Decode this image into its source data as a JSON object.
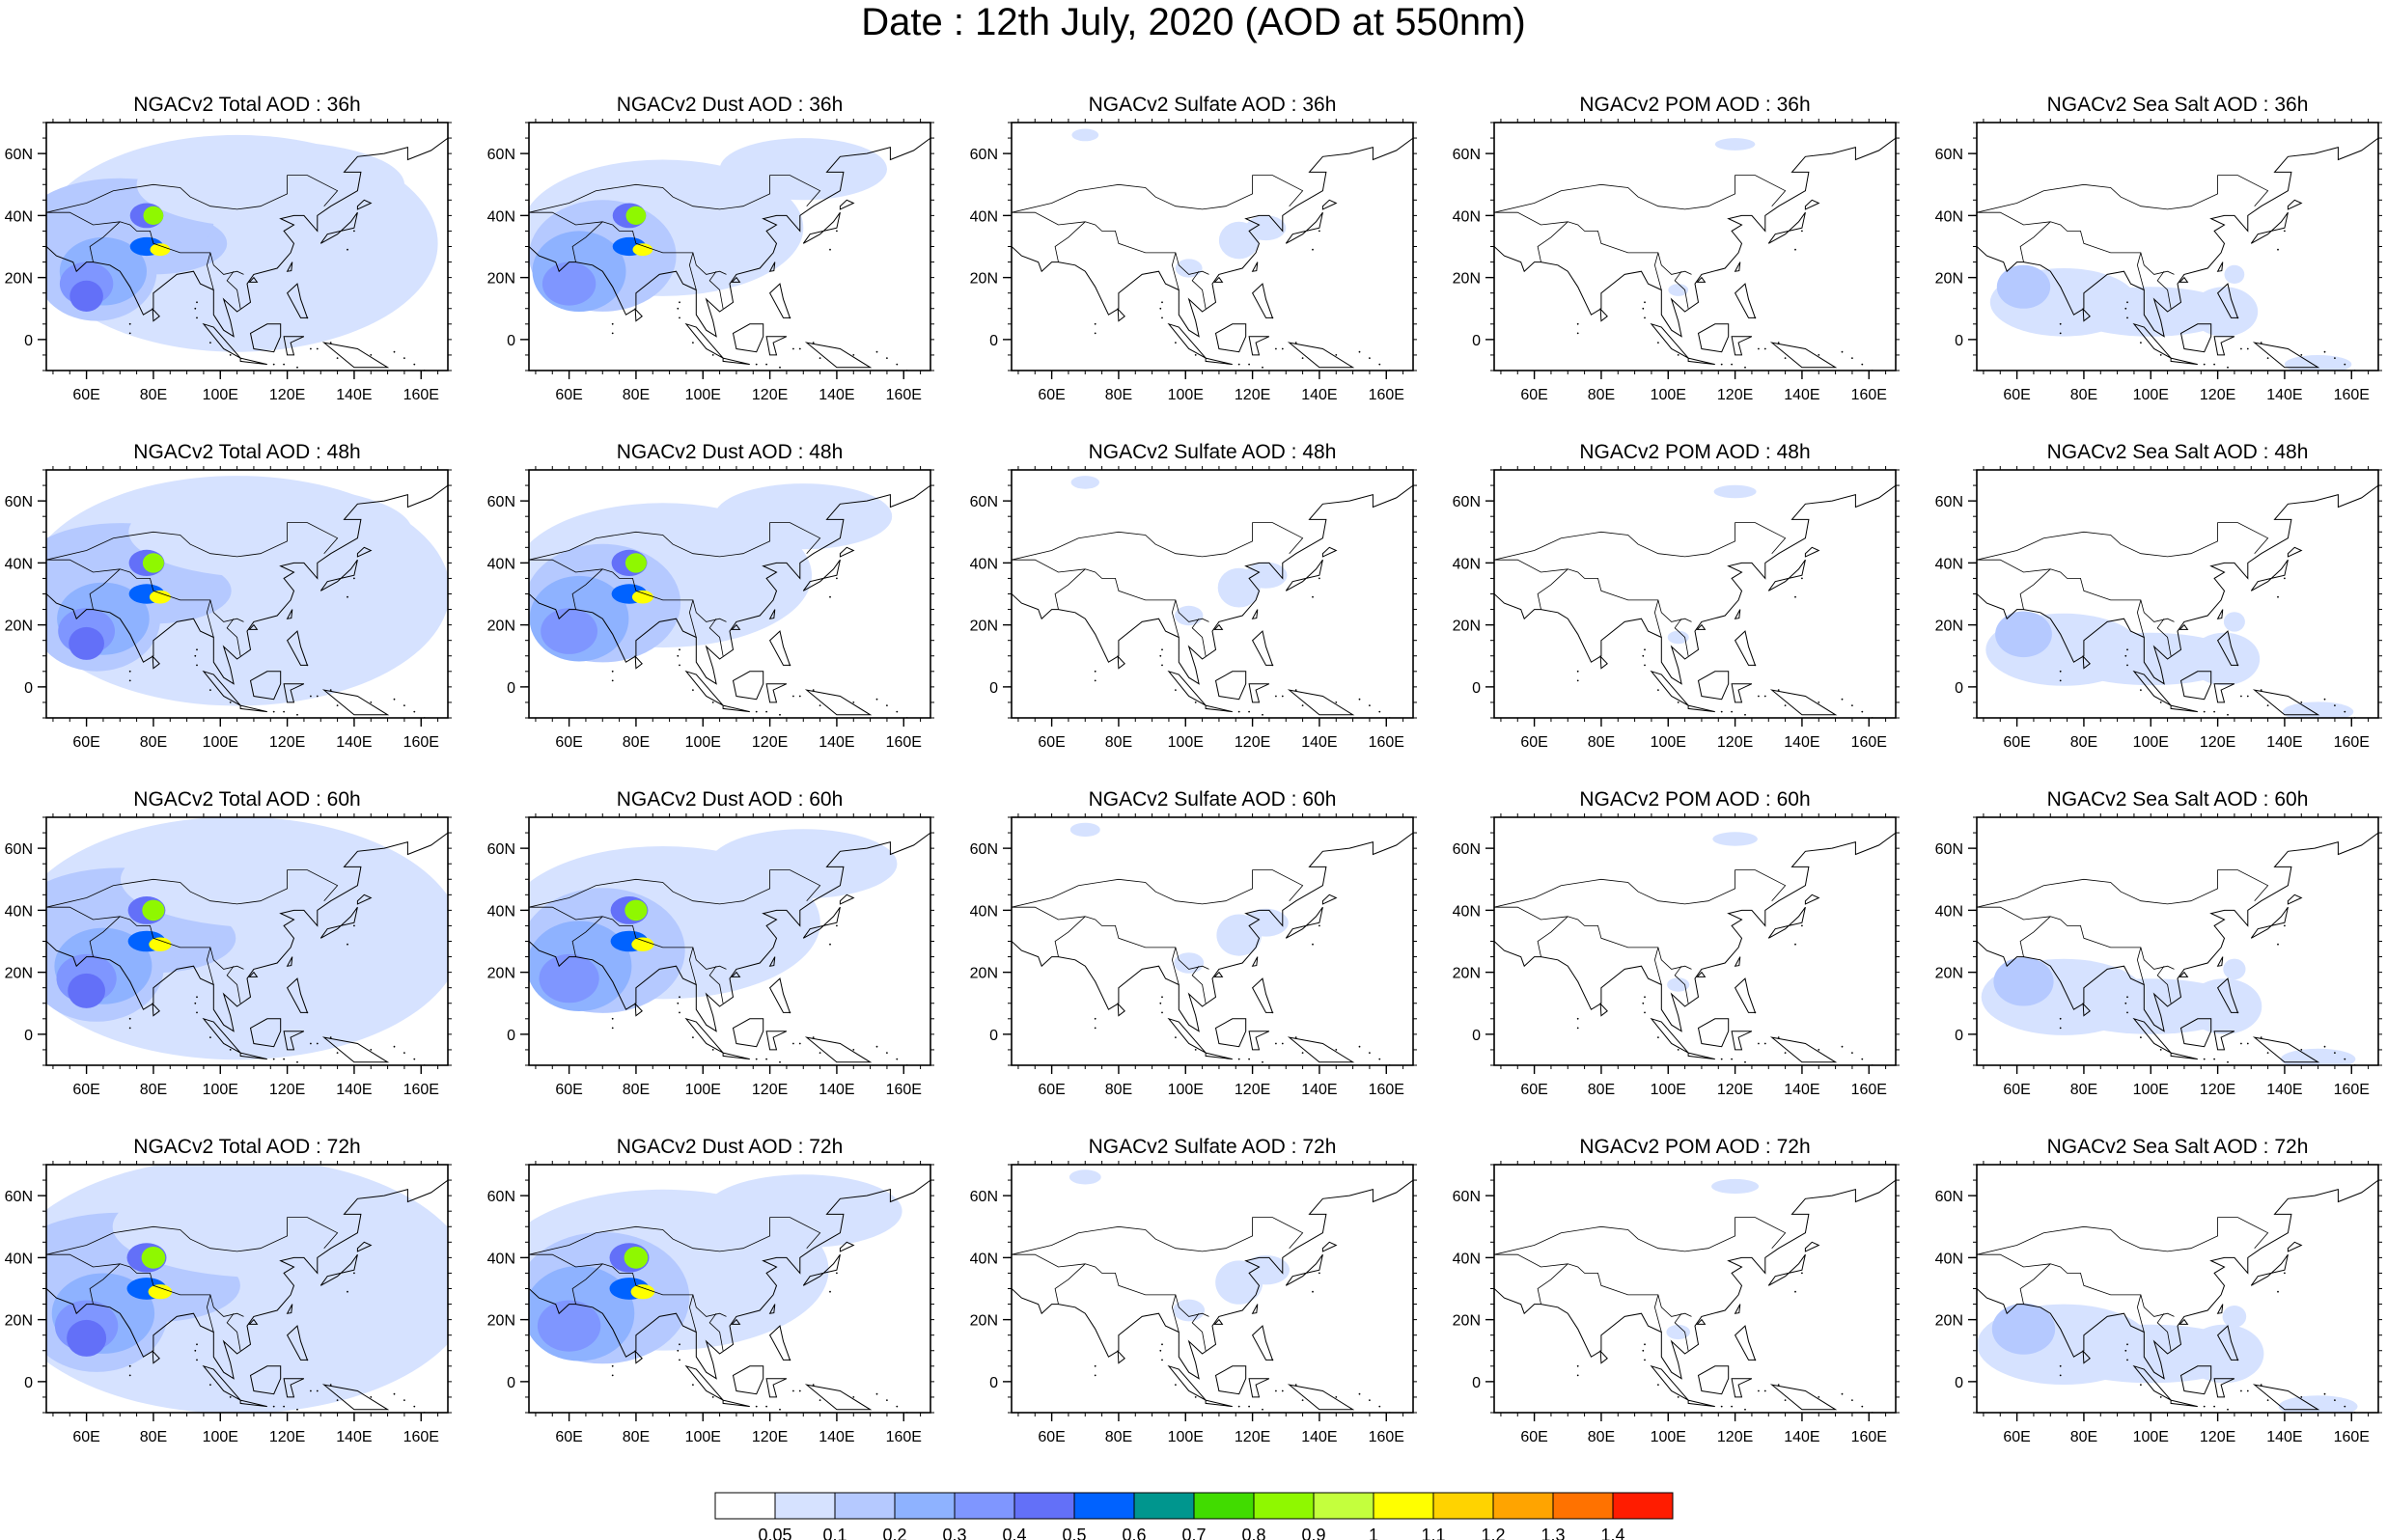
{
  "title": "Date : 12th July, 2020 (AOD at 550nm)",
  "axes": {
    "x_ticks": [
      "60E",
      "80E",
      "100E",
      "120E",
      "140E",
      "160E"
    ],
    "x_values": [
      60,
      80,
      100,
      120,
      140,
      160
    ],
    "y_ticks": [
      "60N",
      "40N",
      "20N",
      "0"
    ],
    "y_values": [
      60,
      40,
      20,
      0
    ],
    "lon_range": [
      48,
      168
    ],
    "lat_range": [
      -10,
      70
    ]
  },
  "species": [
    {
      "id": "total",
      "titles": [
        "NGACv2 Total AOD : 36h",
        "NGACv2 Total AOD : 48h",
        "NGACv2 Total AOD : 60h",
        "NGACv2 Total AOD : 72h"
      ]
    },
    {
      "id": "dust",
      "titles": [
        "NGACv2 Dust AOD : 36h",
        "NGACv2 Dust AOD : 48h",
        "NGACv2 Dust AOD : 60h",
        "NGACv2 Dust AOD : 72h"
      ]
    },
    {
      "id": "sulfate",
      "titles": [
        "NGACv2 Sulfate AOD : 36h",
        "NGACv2 Sulfate AOD : 48h",
        "NGACv2 Sulfate AOD : 60h",
        "NGACv2 Sulfate AOD : 72h"
      ]
    },
    {
      "id": "pom",
      "titles": [
        "NGACv2 POM AOD : 36h",
        "NGACv2 POM AOD : 48h",
        "NGACv2 POM AOD : 60h",
        "NGACv2 POM AOD : 72h"
      ]
    },
    {
      "id": "seasalt",
      "titles": [
        "NGACv2 Sea Salt AOD : 36h",
        "NGACv2 Sea Salt AOD : 48h",
        "NGACv2 Sea Salt AOD : 60h",
        "NGACv2 Sea Salt  AOD : 72h"
      ]
    }
  ],
  "colorbar": {
    "labels": [
      "0.05",
      "0.1",
      "0.2",
      "0.3",
      "0.4",
      "0.5",
      "0.6",
      "0.7",
      "0.8",
      "0.9",
      "1",
      "1.1",
      "1.2",
      "1.3",
      "1.4"
    ],
    "colors": [
      "#ffffff",
      "#d6e2ff",
      "#b5c9ff",
      "#8eb2ff",
      "#7f96ff",
      "#6370f8",
      "#0062ff",
      "#00968e",
      "#41dc00",
      "#8ff800",
      "#c4ff3d",
      "#ffff00",
      "#ffd300",
      "#ffa400",
      "#ff7200",
      "#ff1c00"
    ]
  }
}
